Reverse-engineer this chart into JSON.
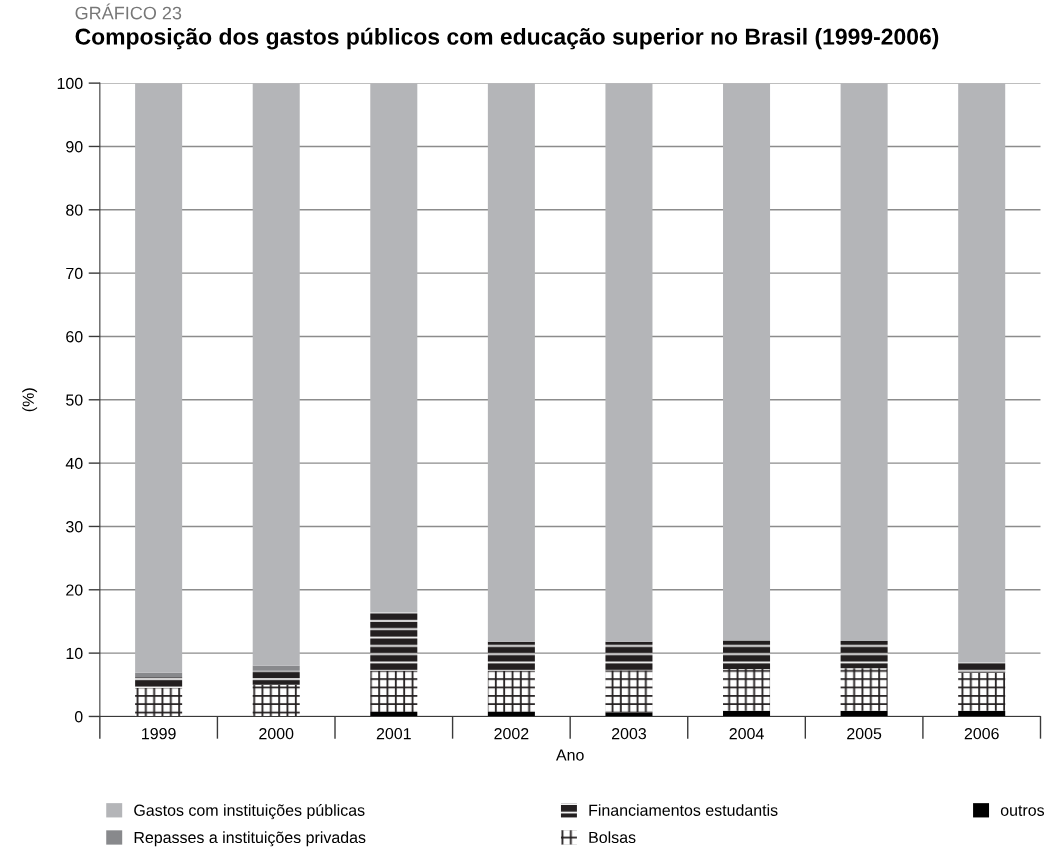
{
  "chart_data": {
    "type": "bar",
    "stacked": true,
    "title": "Composição dos gastos públicos com educação superior no Brasil (1999-2006)",
    "xlabel": "Ano",
    "ylabel": "(%)",
    "annotations": [
      "GRÁFICO 23"
    ],
    "categories": [
      "1999",
      "2000",
      "2001",
      "2002",
      "2003",
      "2004",
      "2005",
      "2006"
    ],
    "series": [
      {
        "name": "outros",
        "color": "#000000",
        "values": [
          0,
          0,
          0.7,
          0.7,
          0.6,
          0.9,
          0.9,
          0.9
        ]
      },
      {
        "name": "Bolsas",
        "color": "#ffffff",
        "values": [
          4.5,
          5.0,
          6.5,
          6.5,
          6.7,
          6.6,
          6.7,
          6.0
        ]
      },
      {
        "name": "Financiamentos estudantis",
        "color": "#231f20",
        "values": [
          1.7,
          2.2,
          9.2,
          4.6,
          4.5,
          4.5,
          4.3,
          1.6
        ]
      },
      {
        "name": "Repasses a instituições privadas",
        "color": "#88898c",
        "values": [
          0.7,
          0.8,
          0,
          0,
          0,
          0,
          0,
          0
        ]
      },
      {
        "name": "Gastos com instituições públicas",
        "color": "#b4b5b8",
        "values": [
          93.1,
          92.0,
          83.6,
          88.2,
          88.2,
          88.0,
          88.1,
          91.5
        ]
      }
    ],
    "ylim": [
      0,
      100
    ],
    "yticks": [
      0,
      10,
      20,
      30,
      40,
      50,
      60,
      70,
      80,
      90,
      100
    ],
    "grid": "y",
    "legend": "bottom"
  }
}
